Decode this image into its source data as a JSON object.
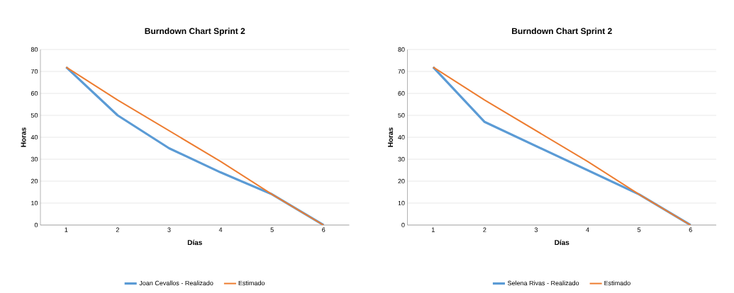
{
  "chart_data": [
    {
      "type": "line",
      "title": "Burndown Chart Sprint 2",
      "xlabel": "Días",
      "ylabel": "Horas",
      "categories": [
        "1",
        "2",
        "3",
        "4",
        "5",
        "6"
      ],
      "series": [
        {
          "name": "Joan Cevallos - Realizado",
          "color": "#5b9bd5",
          "values": [
            72,
            50,
            35,
            24,
            14,
            0
          ]
        },
        {
          "name": "Estimado",
          "color": "#ed7d31",
          "values": [
            72,
            57,
            43,
            29,
            14,
            0
          ]
        }
      ],
      "ylim": [
        0,
        80
      ],
      "yticks": [
        0,
        10,
        20,
        30,
        40,
        50,
        60,
        70,
        80
      ],
      "grid": "y",
      "legend": "bottom",
      "marker": "none",
      "line_style": "solid"
    },
    {
      "type": "line",
      "title": "Burndown Chart Sprint 2",
      "xlabel": "Días",
      "ylabel": "Horas",
      "categories": [
        "1",
        "2",
        "3",
        "4",
        "5",
        "6"
      ],
      "series": [
        {
          "name": "Selena Rivas - Realizado",
          "color": "#5b9bd5",
          "values": [
            72,
            47,
            36,
            25,
            14,
            0
          ]
        },
        {
          "name": "Estimado",
          "color": "#ed7d31",
          "values": [
            72,
            57,
            43,
            29,
            14,
            0
          ]
        }
      ],
      "ylim": [
        0,
        80
      ],
      "yticks": [
        0,
        10,
        20,
        30,
        40,
        50,
        60,
        70,
        80
      ],
      "grid": "y",
      "legend": "bottom",
      "marker": "none",
      "line_style": "solid"
    }
  ]
}
